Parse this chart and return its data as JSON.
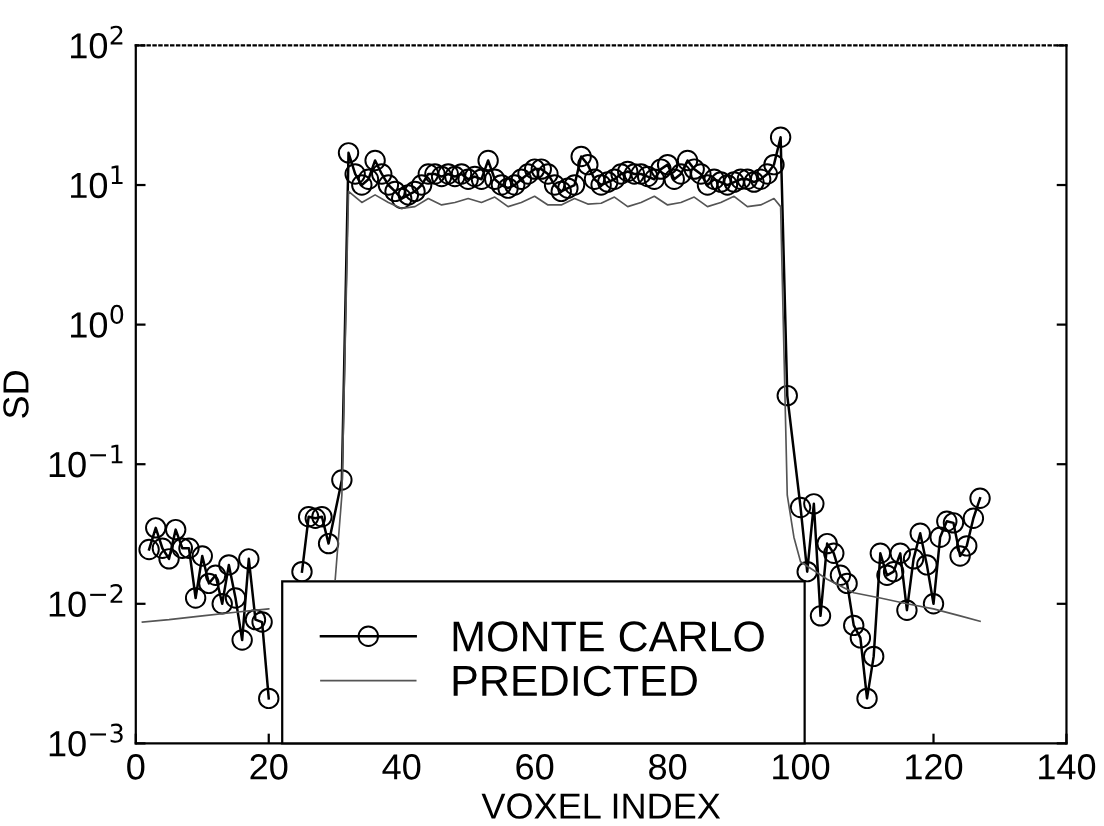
{
  "chart_data": {
    "type": "line",
    "xlabel": "VOXEL INDEX",
    "ylabel": "SD",
    "log": "y",
    "xlim": [
      0,
      140
    ],
    "xticks": [
      0,
      20,
      40,
      60,
      80,
      100,
      120,
      140
    ],
    "ylim": [
      0.001,
      100
    ],
    "yticks": [
      {
        "value": 0.001,
        "label": "10$^{−3}$"
      },
      {
        "value": 0.01,
        "label": "10$^{−2}$"
      },
      {
        "value": 0.1,
        "label": "10$^{−1}$"
      },
      {
        "value": 1,
        "label": "10$^{0}$"
      },
      {
        "value": 10,
        "label": "10$^{1}$"
      },
      {
        "value": 100,
        "label": "10$^{2}$"
      }
    ],
    "grid": false,
    "legend": "bottom",
    "series": [
      {
        "name": "MONTE CARLO",
        "color": "#000000",
        "marker": "circle",
        "line_style": "solid",
        "x": [
          2,
          3,
          4,
          5,
          6,
          7,
          8,
          9,
          10,
          11,
          12,
          13,
          14,
          15,
          16,
          17,
          18,
          19,
          20,
          21,
          25,
          26,
          27,
          28,
          29,
          31,
          32,
          33,
          34,
          35,
          36,
          37,
          38,
          39,
          40,
          41,
          42,
          43,
          44,
          45,
          46,
          47,
          48,
          49,
          50,
          51,
          52,
          53,
          54,
          55,
          56,
          57,
          58,
          59,
          60,
          61,
          62,
          63,
          64,
          65,
          66,
          67,
          68,
          69,
          70,
          71,
          72,
          73,
          74,
          75,
          76,
          77,
          78,
          79,
          80,
          81,
          82,
          83,
          84,
          85,
          86,
          87,
          88,
          89,
          90,
          91,
          92,
          93,
          94,
          95,
          96,
          97,
          98,
          100,
          101,
          102,
          103,
          104,
          105,
          106,
          107,
          108,
          109,
          110,
          111,
          112,
          113,
          114,
          115,
          116,
          117,
          118,
          119,
          120,
          121,
          122,
          123,
          124,
          125,
          126,
          127
        ],
        "values": [
          0.0245,
          0.035,
          0.025,
          0.021,
          0.034,
          0.025,
          0.025,
          0.011,
          0.022,
          0.014,
          0.016,
          0.01,
          0.019,
          0.011,
          0.0055,
          0.021,
          0.0077,
          0.0074,
          0.0021,
          null,
          0.017,
          0.042,
          0.041,
          0.042,
          0.027,
          0.077,
          17,
          12,
          10,
          11,
          15,
          12,
          10,
          9,
          8,
          8.5,
          9,
          10,
          12,
          12,
          11.5,
          12,
          11.5,
          12,
          11,
          11.5,
          11,
          15,
          11,
          10,
          9.5,
          10,
          11,
          12,
          13,
          13,
          12,
          10,
          9,
          9.5,
          10,
          16,
          14,
          11,
          10,
          10.5,
          11,
          12,
          12.5,
          12,
          12,
          11.5,
          11,
          13,
          14,
          11,
          12,
          15,
          13,
          12,
          10,
          11,
          10.5,
          10,
          10.5,
          11,
          11,
          10.5,
          11,
          12,
          14,
          22,
          0.31,
          0.049,
          0.017,
          0.052,
          0.0082,
          0.027,
          0.023,
          0.016,
          0.014,
          0.007,
          0.0057,
          0.0021,
          0.0042,
          0.023,
          0.016,
          0.017,
          0.023,
          0.009,
          0.021,
          0.032,
          0.019,
          0.01,
          0.03,
          0.039,
          0.038,
          0.022,
          0.026,
          0.041,
          0.057
        ]
      },
      {
        "name": "PREDICTED",
        "color": "#555555",
        "marker": "none",
        "line_style": "solid",
        "x": [
          1,
          5,
          10,
          15,
          20,
          25,
          30,
          31,
          32,
          34,
          36,
          38,
          40,
          42,
          44,
          46,
          48,
          50,
          52,
          54,
          56,
          58,
          60,
          62,
          64,
          66,
          68,
          70,
          72,
          74,
          76,
          78,
          80,
          82,
          84,
          86,
          88,
          90,
          92,
          94,
          96,
          97,
          98,
          99,
          100,
          104,
          108,
          112,
          116,
          120,
          124,
          127
        ],
        "values": [
          0.0074,
          0.0077,
          0.0082,
          0.0087,
          0.0092,
          null,
          0.015,
          0.06,
          9,
          7.5,
          8.5,
          7.5,
          6.8,
          7,
          8,
          7.2,
          7.5,
          8,
          7.5,
          8.2,
          7,
          7.5,
          8.3,
          7.2,
          7.2,
          8,
          7.3,
          7.4,
          8.2,
          7,
          7.5,
          8.3,
          7.2,
          7.5,
          8.2,
          7,
          7.5,
          8.3,
          7,
          7.2,
          8,
          7,
          0.06,
          0.03,
          0.02,
          0.015,
          0.012,
          0.011,
          0.01,
          0.0092,
          0.0082,
          0.0075
        ]
      }
    ]
  }
}
